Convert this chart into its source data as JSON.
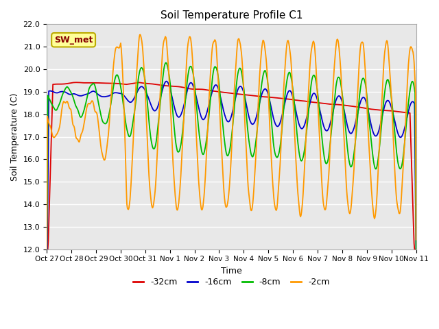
{
  "title": "Soil Temperature Profile C1",
  "xlabel": "Time",
  "ylabel": "Soil Temperature (C)",
  "ylim": [
    12.0,
    22.0
  ],
  "yticks": [
    12.0,
    13.0,
    14.0,
    15.0,
    16.0,
    17.0,
    18.0,
    19.0,
    20.0,
    21.0,
    22.0
  ],
  "xtick_labels": [
    "Oct 27",
    "Oct 28",
    "Oct 29",
    "Oct 30",
    "Oct 31",
    "Nov 1",
    "Nov 2",
    "Nov 3",
    "Nov 4",
    "Nov 5",
    "Nov 6",
    "Nov 7",
    "Nov 8",
    "Nov 9",
    "Nov 10",
    "Nov 11"
  ],
  "legend_labels": [
    "-32cm",
    "-16cm",
    "-8cm",
    "-2cm"
  ],
  "line_colors": [
    "#dd0000",
    "#0000cc",
    "#00bb00",
    "#ff9900"
  ],
  "annotation_text": "SW_met",
  "annotation_bg": "#ffff99",
  "annotation_border": "#bbaa00",
  "plot_bg": "#e8e8e8",
  "fig_bg": "#ffffff",
  "grid_color": "#ffffff",
  "title_fontsize": 11,
  "axis_fontsize": 9,
  "tick_fontsize": 8
}
